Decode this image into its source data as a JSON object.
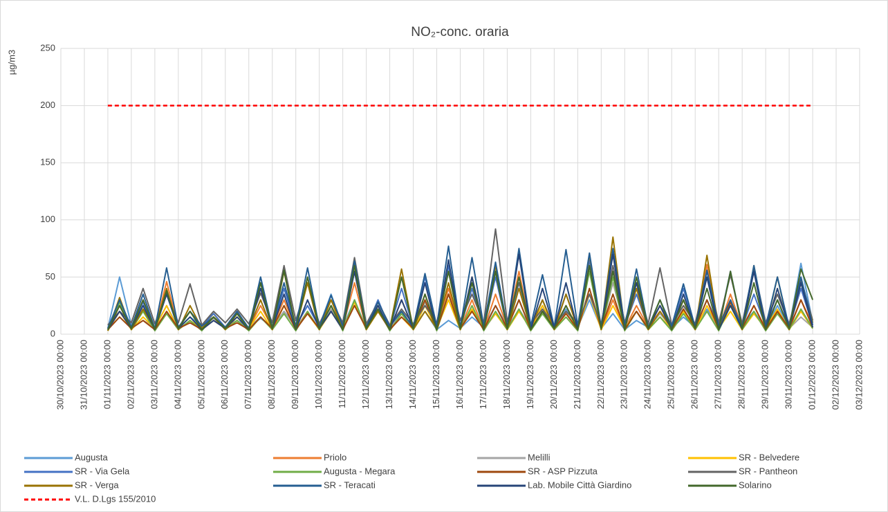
{
  "chart_data": {
    "type": "line",
    "title": "NO₂-conc. oraria",
    "y_label": "µg/m3",
    "grid": true,
    "legend": "bottom",
    "xlim": [
      0,
      34
    ],
    "ylim": [
      0,
      250
    ],
    "yticks": [
      0,
      50,
      100,
      150,
      200,
      250
    ],
    "xticks": [
      {
        "value": 0,
        "label": "30/10/2023 00:00"
      },
      {
        "value": 1,
        "label": "31/10/2023 00:00"
      },
      {
        "value": 2,
        "label": "01/11/2023 00:00"
      },
      {
        "value": 3,
        "label": "02/11/2023 00:00"
      },
      {
        "value": 4,
        "label": "03/11/2023 00:00"
      },
      {
        "value": 5,
        "label": "04/11/2023 00:00"
      },
      {
        "value": 6,
        "label": "05/11/2023 00:00"
      },
      {
        "value": 7,
        "label": "06/11/2023 00:00"
      },
      {
        "value": 8,
        "label": "07/11/2023 00:00"
      },
      {
        "value": 9,
        "label": "08/11/2023 00:00"
      },
      {
        "value": 10,
        "label": "09/11/2023 00:00"
      },
      {
        "value": 11,
        "label": "10/11/2023 00:00"
      },
      {
        "value": 12,
        "label": "11/11/2023 00:00"
      },
      {
        "value": 13,
        "label": "12/11/2023 00:00"
      },
      {
        "value": 14,
        "label": "13/11/2023 00:00"
      },
      {
        "value": 15,
        "label": "14/11/2023 00:00"
      },
      {
        "value": 16,
        "label": "15/11/2023 00:00"
      },
      {
        "value": 17,
        "label": "16/11/2023 00:00"
      },
      {
        "value": 18,
        "label": "17/11/2023 00:00"
      },
      {
        "value": 19,
        "label": "18/11/2023 00:00"
      },
      {
        "value": 20,
        "label": "19/11/2023 00:00"
      },
      {
        "value": 21,
        "label": "20/11/2023 00:00"
      },
      {
        "value": 22,
        "label": "21/11/2023 00:00"
      },
      {
        "value": 23,
        "label": "22/11/2023 00:00"
      },
      {
        "value": 24,
        "label": "23/11/2023 00:00"
      },
      {
        "value": 25,
        "label": "24/11/2023 00:00"
      },
      {
        "value": 26,
        "label": "25/11/2023 00:00"
      },
      {
        "value": 27,
        "label": "26/11/2023 00:00"
      },
      {
        "value": 28,
        "label": "27/11/2023 00:00"
      },
      {
        "value": 29,
        "label": "28/11/2023 00:00"
      },
      {
        "value": 30,
        "label": "29/11/2023 00:00"
      },
      {
        "value": 31,
        "label": "30/11/2023 00:00"
      },
      {
        "value": 32,
        "label": "01/12/2023 00:00"
      },
      {
        "value": 33,
        "label": "02/12/2023 00:00"
      },
      {
        "value": 34,
        "label": "03/12/2023 00:00"
      }
    ],
    "x": [
      2,
      2.5,
      3,
      3.5,
      4,
      4.5,
      5,
      5.5,
      6,
      6.5,
      7,
      7.5,
      8,
      8.5,
      9,
      9.5,
      10,
      10.5,
      11,
      11.5,
      12,
      12.5,
      13,
      13.5,
      14,
      14.5,
      15,
      15.5,
      16,
      16.5,
      17,
      17.5,
      18,
      18.5,
      19,
      19.5,
      20,
      20.5,
      21,
      21.5,
      22,
      22.5,
      23,
      23.5,
      24,
      24.5,
      25,
      25.5,
      26,
      26.5,
      27,
      27.5,
      28,
      28.5,
      29,
      29.5,
      30,
      30.5,
      31,
      31.5,
      32
    ],
    "series": [
      {
        "name": "Augusta",
        "color": "#5b9bd5",
        "values": [
          5,
          50,
          8,
          20,
          6,
          25,
          5,
          15,
          7,
          18,
          6,
          12,
          5,
          14,
          6,
          20,
          8,
          25,
          7,
          35,
          6,
          30,
          5,
          22,
          6,
          18,
          5,
          20,
          4,
          12,
          5,
          15,
          6,
          25,
          7,
          30,
          5,
          20,
          8,
          22,
          6,
          30,
          5,
          18,
          4,
          12,
          6,
          20,
          5,
          15,
          6,
          22,
          7,
          28,
          8,
          20,
          5,
          25,
          6,
          62,
          10
        ]
      },
      {
        "name": "Priolo",
        "color": "#ed7d31",
        "values": [
          3,
          25,
          5,
          30,
          4,
          46,
          6,
          20,
          5,
          15,
          4,
          18,
          5,
          25,
          6,
          30,
          5,
          20,
          4,
          25,
          6,
          45,
          5,
          25,
          4,
          30,
          5,
          35,
          6,
          40,
          5,
          30,
          4,
          35,
          6,
          55,
          5,
          20,
          6,
          25,
          5,
          65,
          4,
          30,
          5,
          25,
          6,
          20,
          5,
          30,
          4,
          61,
          5,
          35,
          6,
          25,
          5,
          20,
          4,
          30,
          8
        ]
      },
      {
        "name": "Melilli",
        "color": "#a5a5a5",
        "values": [
          4,
          15,
          5,
          12,
          6,
          18,
          5,
          10,
          6,
          14,
          5,
          12,
          6,
          15,
          5,
          20,
          6,
          18,
          5,
          22,
          6,
          25,
          5,
          20,
          6,
          18,
          5,
          28,
          6,
          35,
          5,
          20,
          4,
          18,
          5,
          22,
          6,
          25,
          5,
          20,
          6,
          55,
          5,
          45,
          6,
          20,
          5,
          18,
          6,
          22,
          5,
          20,
          6,
          25,
          5,
          18,
          6,
          20,
          5,
          15,
          6
        ]
      },
      {
        "name": "SR - Belvedere",
        "color": "#ffc000",
        "values": [
          3,
          20,
          4,
          15,
          5,
          25,
          4,
          12,
          5,
          18,
          4,
          15,
          5,
          20,
          4,
          25,
          5,
          18,
          4,
          20,
          5,
          28,
          4,
          20,
          5,
          15,
          4,
          25,
          5,
          30,
          4,
          22,
          5,
          18,
          4,
          20,
          5,
          25,
          4,
          18,
          5,
          35,
          4,
          25,
          5,
          20,
          4,
          15,
          5,
          20,
          4,
          25,
          5,
          20,
          4,
          18,
          5,
          22,
          4,
          20,
          5
        ]
      },
      {
        "name": "SR - Via Gela",
        "color": "#4472c4",
        "values": [
          5,
          30,
          6,
          28,
          5,
          35,
          6,
          20,
          7,
          18,
          6,
          20,
          5,
          45,
          6,
          40,
          7,
          25,
          6,
          30,
          7,
          55,
          6,
          30,
          5,
          40,
          6,
          50,
          7,
          60,
          6,
          40,
          5,
          50,
          6,
          45,
          7,
          30,
          6,
          35,
          7,
          65,
          6,
          55,
          7,
          35,
          6,
          25,
          7,
          40,
          6,
          30,
          7,
          55,
          6,
          35,
          7,
          30,
          6,
          40,
          8
        ]
      },
      {
        "name": "Augusta - Megara",
        "color": "#70ad47",
        "values": [
          3,
          28,
          4,
          20,
          3,
          18,
          4,
          12,
          3,
          15,
          4,
          12,
          3,
          15,
          4,
          18,
          3,
          20,
          4,
          25,
          3,
          30,
          4,
          22,
          3,
          18,
          4,
          30,
          3,
          35,
          4,
          25,
          3,
          20,
          4,
          22,
          3,
          18,
          4,
          15,
          3,
          55,
          4,
          50,
          3,
          20,
          4,
          15,
          3,
          18,
          4,
          20,
          3,
          25,
          4,
          20,
          3,
          18,
          4,
          22,
          5
        ]
      },
      {
        "name": "SR - ASP Pizzuta",
        "color": "#9e480e",
        "values": [
          4,
          15,
          5,
          12,
          4,
          20,
          5,
          10,
          4,
          12,
          5,
          10,
          4,
          15,
          5,
          25,
          4,
          18,
          5,
          20,
          4,
          25,
          5,
          20,
          4,
          15,
          5,
          30,
          4,
          35,
          5,
          20,
          4,
          25,
          5,
          30,
          4,
          20,
          5,
          18,
          4,
          40,
          5,
          35,
          4,
          20,
          5,
          25,
          4,
          22,
          5,
          30,
          4,
          28,
          5,
          25,
          4,
          20,
          5,
          30,
          6
        ]
      },
      {
        "name": "SR - Pantheon",
        "color": "#636363",
        "values": [
          8,
          20,
          10,
          40,
          9,
          35,
          10,
          44,
          8,
          20,
          10,
          22,
          9,
          36,
          10,
          60,
          12,
          45,
          9,
          30,
          10,
          67,
          9,
          28,
          8,
          22,
          9,
          25,
          10,
          55,
          12,
          35,
          10,
          92,
          11,
          45,
          9,
          22,
          8,
          20,
          10,
          35,
          9,
          60,
          10,
          45,
          9,
          58,
          8,
          25,
          9,
          55,
          10,
          52,
          9,
          58,
          10,
          35,
          9,
          48,
          12
        ]
      },
      {
        "name": "SR - Verga",
        "color": "#997300",
        "values": [
          3,
          32,
          4,
          22,
          5,
          40,
          4,
          25,
          5,
          15,
          4,
          18,
          5,
          30,
          4,
          55,
          5,
          45,
          4,
          30,
          5,
          55,
          4,
          20,
          5,
          57,
          4,
          20,
          5,
          45,
          4,
          50,
          5,
          60,
          4,
          40,
          5,
          30,
          4,
          35,
          5,
          70,
          4,
          85,
          5,
          40,
          4,
          20,
          5,
          30,
          4,
          69,
          5,
          30,
          4,
          60,
          5,
          50,
          4,
          45,
          10
        ]
      },
      {
        "name": "SR - Teracati",
        "color": "#255e91",
        "values": [
          5,
          30,
          6,
          35,
          5,
          58,
          6,
          20,
          7,
          15,
          6,
          20,
          5,
          50,
          6,
          45,
          7,
          58,
          6,
          34,
          7,
          64,
          6,
          28,
          7,
          20,
          6,
          53,
          7,
          77,
          6,
          67,
          7,
          63,
          6,
          75,
          7,
          52,
          6,
          74,
          7,
          71,
          6,
          75,
          7,
          57,
          6,
          30,
          7,
          44,
          6,
          56,
          7,
          30,
          6,
          60,
          7,
          50,
          6,
          50,
          8
        ]
      },
      {
        "name": "Lab. Mobile Città Giardino",
        "color": "#264478",
        "values": [
          4,
          20,
          5,
          25,
          4,
          35,
          5,
          15,
          4,
          12,
          5,
          15,
          4,
          40,
          5,
          35,
          4,
          30,
          5,
          20,
          4,
          55,
          5,
          25,
          4,
          30,
          5,
          45,
          4,
          65,
          5,
          50,
          4,
          55,
          5,
          70,
          4,
          40,
          5,
          45,
          4,
          60,
          5,
          70,
          4,
          45,
          5,
          25,
          4,
          35,
          5,
          50,
          4,
          25,
          5,
          55,
          4,
          40,
          5,
          45,
          6
        ]
      },
      {
        "name": "Solarino",
        "color": "#43682b",
        "values": [
          4,
          25,
          5,
          30,
          4,
          38,
          5,
          20,
          4,
          15,
          5,
          18,
          4,
          45,
          5,
          56,
          4,
          50,
          5,
          25,
          4,
          60,
          5,
          22,
          4,
          50,
          5,
          35,
          4,
          55,
          5,
          45,
          4,
          55,
          5,
          50,
          4,
          20,
          5,
          25,
          4,
          60,
          5,
          55,
          4,
          50,
          5,
          30,
          4,
          30,
          5,
          40,
          4,
          55,
          5,
          45,
          4,
          30,
          5,
          57,
          30
        ]
      },
      {
        "name": "V.L. D.Lgs 155/2010",
        "color": "#ff0000",
        "dashed": true,
        "x": [
          2,
          32
        ],
        "values": [
          200,
          200
        ]
      }
    ]
  }
}
